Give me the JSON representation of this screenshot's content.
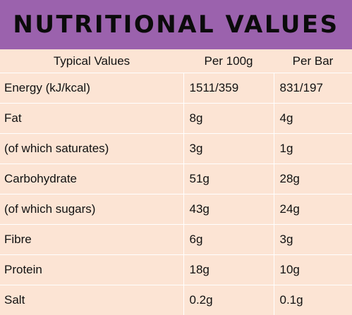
{
  "title": "NUTRITIONAL VALUES",
  "headers": [
    "Typical Values",
    "Per 100g",
    "Per Bar"
  ],
  "rows": [
    {
      "label": "Energy (kJ/kcal)",
      "per100g": "1511/359",
      "perBar": "831/197"
    },
    {
      "label": "Fat",
      "per100g": "8g",
      "perBar": "4g"
    },
    {
      "label": "(of which saturates)",
      "per100g": "3g",
      "perBar": "1g"
    },
    {
      "label": "Carbohydrate",
      "per100g": "51g",
      "perBar": "28g"
    },
    {
      "label": "(of which sugars)",
      "per100g": "43g",
      "perBar": "24g"
    },
    {
      "label": "Fibre",
      "per100g": "6g",
      "perBar": "3g"
    },
    {
      "label": "Protein",
      "per100g": "18g",
      "perBar": "10g"
    },
    {
      "label": "Salt",
      "per100g": "0.2g",
      "perBar": "0.1g"
    }
  ],
  "colors": {
    "header_bg": "#9b62ad",
    "table_bg": "#fce4d4",
    "grid": "#ffffff"
  }
}
